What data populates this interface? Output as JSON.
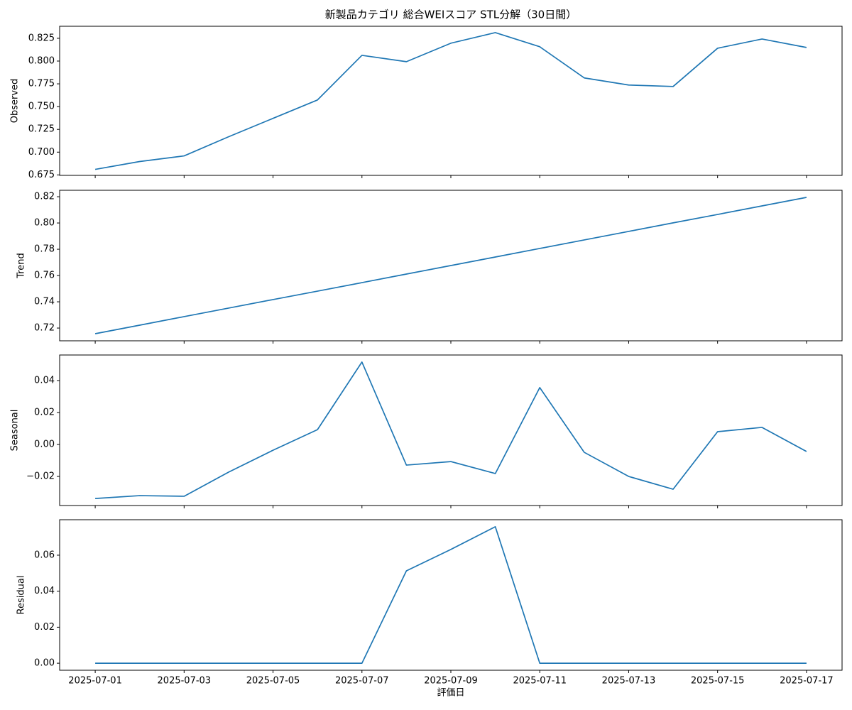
{
  "chart_data": [
    {
      "type": "line",
      "title": "新製品カテゴリ 総合WEIスコア STL分解（30日間）",
      "ylabel": "Observed",
      "color": "#1f77b4",
      "x": [
        "2025-07-01",
        "2025-07-02",
        "2025-07-03",
        "2025-07-04",
        "2025-07-05",
        "2025-07-06",
        "2025-07-07",
        "2025-07-08",
        "2025-07-09",
        "2025-07-10",
        "2025-07-11",
        "2025-07-12",
        "2025-07-13",
        "2025-07-14",
        "2025-07-15",
        "2025-07-16",
        "2025-07-17"
      ],
      "values": [
        0.6811,
        0.6897,
        0.6959,
        0.7169,
        0.7371,
        0.7573,
        0.8063,
        0.7993,
        0.8196,
        0.8312,
        0.8157,
        0.7815,
        0.7737,
        0.7721,
        0.8141,
        0.8242,
        0.8149
      ],
      "ylim": [
        0.6745,
        0.8382
      ],
      "yticks": [
        0.675,
        {
          "value": 0.7,
          "label": "0.700"
        },
        0.725,
        {
          "value": 0.75,
          "label": "0.750"
        },
        0.775,
        {
          "value": 0.8,
          "label": "0.800"
        },
        0.825
      ],
      "xticks": [
        "2025-07-01",
        "2025-07-03",
        "2025-07-05",
        "2025-07-07",
        "2025-07-09",
        "2025-07-11",
        "2025-07-13",
        "2025-07-15",
        "2025-07-17"
      ]
    },
    {
      "type": "line",
      "ylabel": "Trend",
      "color": "#1f77b4",
      "x": [
        "2025-07-01",
        "2025-07-02",
        "2025-07-03",
        "2025-07-04",
        "2025-07-05",
        "2025-07-06",
        "2025-07-07",
        "2025-07-08",
        "2025-07-09",
        "2025-07-10",
        "2025-07-11",
        "2025-07-12",
        "2025-07-13",
        "2025-07-14",
        "2025-07-15",
        "2025-07-16",
        "2025-07-17"
      ],
      "values": [
        0.7157,
        0.7222,
        0.7287,
        0.7352,
        0.7417,
        0.7481,
        0.7546,
        0.7611,
        0.7676,
        0.7741,
        0.7806,
        0.7871,
        0.7936,
        0.8001,
        0.8065,
        0.813,
        0.8195
      ],
      "ylim": [
        0.7103,
        0.8249
      ],
      "yticks": [
        0.72,
        0.74,
        0.76,
        0.78,
        {
          "value": 0.8,
          "label": "0.80"
        },
        0.82
      ],
      "xticks": [
        "2025-07-01",
        "2025-07-03",
        "2025-07-05",
        "2025-07-07",
        "2025-07-09",
        "2025-07-11",
        "2025-07-13",
        "2025-07-15",
        "2025-07-17"
      ]
    },
    {
      "type": "line",
      "ylabel": "Seasonal",
      "color": "#1f77b4",
      "x": [
        "2025-07-01",
        "2025-07-02",
        "2025-07-03",
        "2025-07-04",
        "2025-07-05",
        "2025-07-06",
        "2025-07-07",
        "2025-07-08",
        "2025-07-09",
        "2025-07-10",
        "2025-07-11",
        "2025-07-12",
        "2025-07-13",
        "2025-07-14",
        "2025-07-15",
        "2025-07-16",
        "2025-07-17"
      ],
      "values": [
        -0.0338,
        -0.032,
        -0.0324,
        -0.0173,
        -0.0036,
        0.0093,
        0.0516,
        -0.0129,
        -0.0107,
        -0.0182,
        0.0356,
        -0.0049,
        -0.02,
        -0.028,
        0.008,
        0.0107,
        -0.0044
      ],
      "ylim": [
        -0.0382,
        0.056
      ],
      "yticks": [
        {
          "value": -0.02,
          "label": "−0.02"
        },
        {
          "value": 0,
          "label": "0.00"
        },
        0.02,
        0.04
      ],
      "xticks": [
        "2025-07-01",
        "2025-07-03",
        "2025-07-05",
        "2025-07-07",
        "2025-07-09",
        "2025-07-11",
        "2025-07-13",
        "2025-07-15",
        "2025-07-17"
      ]
    },
    {
      "type": "line",
      "ylabel": "Residual",
      "xlabel": "評価日",
      "color": "#1f77b4",
      "x": [
        "2025-07-01",
        "2025-07-02",
        "2025-07-03",
        "2025-07-04",
        "2025-07-05",
        "2025-07-06",
        "2025-07-07",
        "2025-07-08",
        "2025-07-09",
        "2025-07-10",
        "2025-07-11",
        "2025-07-12",
        "2025-07-13",
        "2025-07-14",
        "2025-07-15",
        "2025-07-16",
        "2025-07-17"
      ],
      "values": [
        0,
        0,
        0,
        0,
        0,
        0,
        0,
        0.0513,
        0.0632,
        0.0758,
        0,
        0,
        0,
        0,
        0,
        0,
        0
      ],
      "ylim": [
        -0.0039,
        0.0797
      ],
      "yticks": [
        {
          "value": 0,
          "label": "0.00"
        },
        0.02,
        0.04,
        0.06
      ],
      "xticks": [
        "2025-07-01",
        "2025-07-03",
        "2025-07-05",
        "2025-07-07",
        "2025-07-09",
        "2025-07-11",
        "2025-07-13",
        "2025-07-15",
        "2025-07-17"
      ]
    }
  ]
}
